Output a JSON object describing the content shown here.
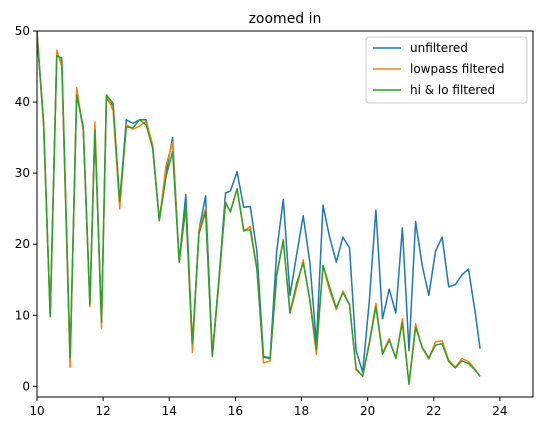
{
  "chart_data": {
    "type": "line",
    "title": "zoomed in",
    "xlabel": "",
    "ylabel": "",
    "xlim": [
      10,
      25
    ],
    "ylim": [
      -1.5,
      50
    ],
    "xticks": [
      10,
      12,
      14,
      16,
      18,
      20,
      22,
      24
    ],
    "yticks": [
      0,
      10,
      20,
      30,
      40,
      50
    ],
    "grid": false,
    "legend_position": "top-right",
    "series": [
      {
        "name": "unfiltered",
        "color": "#1f77b4",
        "points": [
          [
            10.0,
            50.0
          ],
          [
            10.2,
            37.0
          ],
          [
            10.4,
            10.0
          ],
          [
            10.6,
            47.0
          ],
          [
            10.75,
            45.5
          ],
          [
            11.0,
            3.5
          ],
          [
            11.2,
            41.5
          ],
          [
            11.4,
            36.0
          ],
          [
            11.6,
            11.5
          ],
          [
            11.75,
            36.5
          ],
          [
            11.95,
            9.0
          ],
          [
            12.1,
            40.5
          ],
          [
            12.3,
            39.5
          ],
          [
            12.5,
            26.0
          ],
          [
            12.7,
            37.5
          ],
          [
            12.9,
            37.0
          ],
          [
            13.1,
            37.5
          ],
          [
            13.3,
            37.5
          ],
          [
            13.5,
            33.5
          ],
          [
            13.7,
            23.5
          ],
          [
            13.9,
            30.0
          ],
          [
            14.1,
            35.0
          ],
          [
            14.3,
            17.5
          ],
          [
            14.5,
            27.0
          ],
          [
            14.7,
            5.5
          ],
          [
            14.9,
            22.0
          ],
          [
            15.1,
            26.8
          ],
          [
            15.3,
            4.5
          ],
          [
            15.5,
            15.0
          ],
          [
            15.7,
            27.2
          ],
          [
            15.85,
            27.5
          ],
          [
            16.05,
            30.2
          ],
          [
            16.25,
            25.2
          ],
          [
            16.45,
            25.3
          ],
          [
            16.65,
            19.0
          ],
          [
            16.85,
            4.2
          ],
          [
            17.05,
            4.0
          ],
          [
            17.25,
            19.0
          ],
          [
            17.45,
            26.3
          ],
          [
            17.65,
            12.8
          ],
          [
            17.85,
            18.5
          ],
          [
            18.05,
            24.0
          ],
          [
            18.25,
            17.5
          ],
          [
            18.45,
            6.0
          ],
          [
            18.65,
            25.5
          ],
          [
            18.85,
            21.0
          ],
          [
            19.05,
            17.5
          ],
          [
            19.25,
            21.0
          ],
          [
            19.45,
            19.5
          ],
          [
            19.65,
            5.0
          ],
          [
            19.85,
            2.0
          ],
          [
            20.05,
            12.0
          ],
          [
            20.25,
            24.8
          ],
          [
            20.45,
            9.5
          ],
          [
            20.65,
            13.7
          ],
          [
            20.85,
            10.3
          ],
          [
            21.05,
            22.3
          ],
          [
            21.25,
            5.0
          ],
          [
            21.45,
            23.2
          ],
          [
            21.65,
            17.0
          ],
          [
            21.85,
            12.8
          ],
          [
            22.05,
            19.0
          ],
          [
            22.25,
            21.0
          ],
          [
            22.45,
            14.0
          ],
          [
            22.65,
            14.3
          ],
          [
            22.85,
            15.7
          ],
          [
            23.05,
            16.5
          ],
          [
            23.25,
            10.5
          ],
          [
            23.4,
            5.3
          ]
        ]
      },
      {
        "name": "lowpass filtered",
        "color": "#ff7f0e",
        "points": [
          [
            10.0,
            49.8
          ],
          [
            10.2,
            36.5
          ],
          [
            10.4,
            10.0
          ],
          [
            10.6,
            47.3
          ],
          [
            10.75,
            45.0
          ],
          [
            11.0,
            2.7
          ],
          [
            11.2,
            42.0
          ],
          [
            11.4,
            36.0
          ],
          [
            11.6,
            11.2
          ],
          [
            11.75,
            37.2
          ],
          [
            11.95,
            8.2
          ],
          [
            12.1,
            41.0
          ],
          [
            12.3,
            38.8
          ],
          [
            12.5,
            25.0
          ],
          [
            12.7,
            36.8
          ],
          [
            12.9,
            36.2
          ],
          [
            13.1,
            36.6
          ],
          [
            13.3,
            37.3
          ],
          [
            13.5,
            34.0
          ],
          [
            13.7,
            23.3
          ],
          [
            13.9,
            31.0
          ],
          [
            14.1,
            34.4
          ],
          [
            14.3,
            17.5
          ],
          [
            14.5,
            25.0
          ],
          [
            14.7,
            4.8
          ],
          [
            14.9,
            22.0
          ],
          [
            15.1,
            25.0
          ],
          [
            15.3,
            4.2
          ],
          [
            15.5,
            14.5
          ],
          [
            15.7,
            26.0
          ],
          [
            15.85,
            24.5
          ],
          [
            16.05,
            27.8
          ],
          [
            16.25,
            21.8
          ],
          [
            16.45,
            22.5
          ],
          [
            16.65,
            16.5
          ],
          [
            16.85,
            3.3
          ],
          [
            17.05,
            3.6
          ],
          [
            17.25,
            15.5
          ],
          [
            17.45,
            20.7
          ],
          [
            17.65,
            10.3
          ],
          [
            17.85,
            13.8
          ],
          [
            18.05,
            17.8
          ],
          [
            18.25,
            12.0
          ],
          [
            18.45,
            4.5
          ],
          [
            18.65,
            17.0
          ],
          [
            18.85,
            13.5
          ],
          [
            19.05,
            10.8
          ],
          [
            19.25,
            13.4
          ],
          [
            19.45,
            11.5
          ],
          [
            19.65,
            2.3
          ],
          [
            19.85,
            1.5
          ],
          [
            20.05,
            6.2
          ],
          [
            20.25,
            11.7
          ],
          [
            20.45,
            4.7
          ],
          [
            20.65,
            6.7
          ],
          [
            20.85,
            3.9
          ],
          [
            21.05,
            9.5
          ],
          [
            21.25,
            0.3
          ],
          [
            21.45,
            8.8
          ],
          [
            21.65,
            5.4
          ],
          [
            21.85,
            3.8
          ],
          [
            22.05,
            6.3
          ],
          [
            22.25,
            6.4
          ],
          [
            22.45,
            3.7
          ],
          [
            22.65,
            2.7
          ],
          [
            22.85,
            3.9
          ],
          [
            23.05,
            3.5
          ],
          [
            23.25,
            2.4
          ],
          [
            23.4,
            1.4
          ]
        ]
      },
      {
        "name": "hi & lo filtered",
        "color": "#2ca02c",
        "points": [
          [
            10.0,
            49.3
          ],
          [
            10.2,
            37.2
          ],
          [
            10.4,
            9.8
          ],
          [
            10.6,
            46.5
          ],
          [
            10.75,
            46.2
          ],
          [
            11.0,
            4.0
          ],
          [
            11.2,
            41.0
          ],
          [
            11.4,
            36.5
          ],
          [
            11.6,
            11.5
          ],
          [
            11.75,
            36.0
          ],
          [
            11.95,
            9.0
          ],
          [
            12.1,
            41.0
          ],
          [
            12.3,
            39.8
          ],
          [
            12.5,
            26.0
          ],
          [
            12.7,
            36.5
          ],
          [
            12.9,
            36.4
          ],
          [
            13.1,
            37.5
          ],
          [
            13.3,
            36.8
          ],
          [
            13.5,
            33.5
          ],
          [
            13.7,
            23.3
          ],
          [
            13.9,
            29.5
          ],
          [
            14.1,
            33.0
          ],
          [
            14.3,
            17.5
          ],
          [
            14.5,
            25.5
          ],
          [
            14.7,
            6.0
          ],
          [
            14.9,
            21.5
          ],
          [
            15.1,
            24.5
          ],
          [
            15.3,
            4.2
          ],
          [
            15.5,
            15.0
          ],
          [
            15.7,
            25.8
          ],
          [
            15.85,
            24.6
          ],
          [
            16.05,
            27.8
          ],
          [
            16.25,
            22.0
          ],
          [
            16.45,
            22.0
          ],
          [
            16.65,
            16.5
          ],
          [
            16.85,
            4.1
          ],
          [
            17.05,
            3.9
          ],
          [
            17.25,
            15.8
          ],
          [
            17.45,
            20.5
          ],
          [
            17.65,
            10.3
          ],
          [
            17.85,
            14.5
          ],
          [
            18.05,
            17.4
          ],
          [
            18.25,
            12.3
          ],
          [
            18.45,
            5.2
          ],
          [
            18.65,
            17.0
          ],
          [
            18.85,
            14.0
          ],
          [
            19.05,
            11.0
          ],
          [
            19.25,
            13.2
          ],
          [
            19.45,
            11.5
          ],
          [
            19.65,
            2.5
          ],
          [
            19.85,
            1.4
          ],
          [
            20.05,
            6.0
          ],
          [
            20.25,
            11.2
          ],
          [
            20.45,
            4.5
          ],
          [
            20.65,
            6.5
          ],
          [
            20.85,
            4.0
          ],
          [
            21.05,
            9.0
          ],
          [
            21.25,
            0.3
          ],
          [
            21.45,
            8.3
          ],
          [
            21.65,
            5.5
          ],
          [
            21.85,
            4.0
          ],
          [
            22.05,
            5.8
          ],
          [
            22.25,
            6.0
          ],
          [
            22.45,
            3.5
          ],
          [
            22.65,
            2.6
          ],
          [
            22.85,
            3.6
          ],
          [
            23.05,
            3.2
          ],
          [
            23.25,
            2.3
          ],
          [
            23.4,
            1.4
          ]
        ]
      }
    ]
  }
}
